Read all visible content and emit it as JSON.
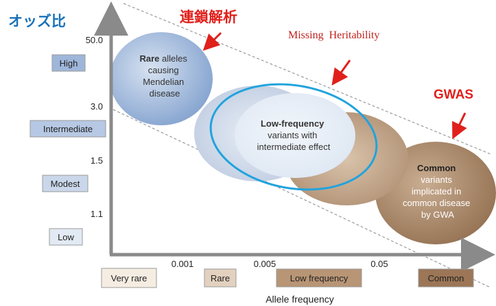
{
  "header": {
    "odds_label": "オッズ比",
    "linkage": "連鎖解析",
    "missing": "Missing  Heritability",
    "gwas": "GWAS"
  },
  "y_axis": {
    "values": [
      "50.0",
      "3.0",
      "1.5",
      "1.1"
    ],
    "levels": [
      "High",
      "Intermediate",
      "Modest",
      "Low"
    ]
  },
  "x_axis": {
    "values": [
      "0.001",
      "0.005",
      "0.05"
    ],
    "levels": [
      "Very rare",
      "Rare",
      "Low frequency",
      "Common"
    ],
    "title": "Allele frequency"
  },
  "ellipses": [
    {
      "bold": "Rare",
      "rest": "alleles",
      "lines": [
        "causing",
        "Mendelian",
        "disease"
      ]
    },
    {
      "bold": "Low-frequency",
      "lines": [
        "variants with",
        "intermediate effect"
      ]
    },
    {
      "bold": "Common",
      "lines": [
        "variants",
        "implicated in",
        "common disease",
        "by GWA"
      ]
    }
  ]
}
